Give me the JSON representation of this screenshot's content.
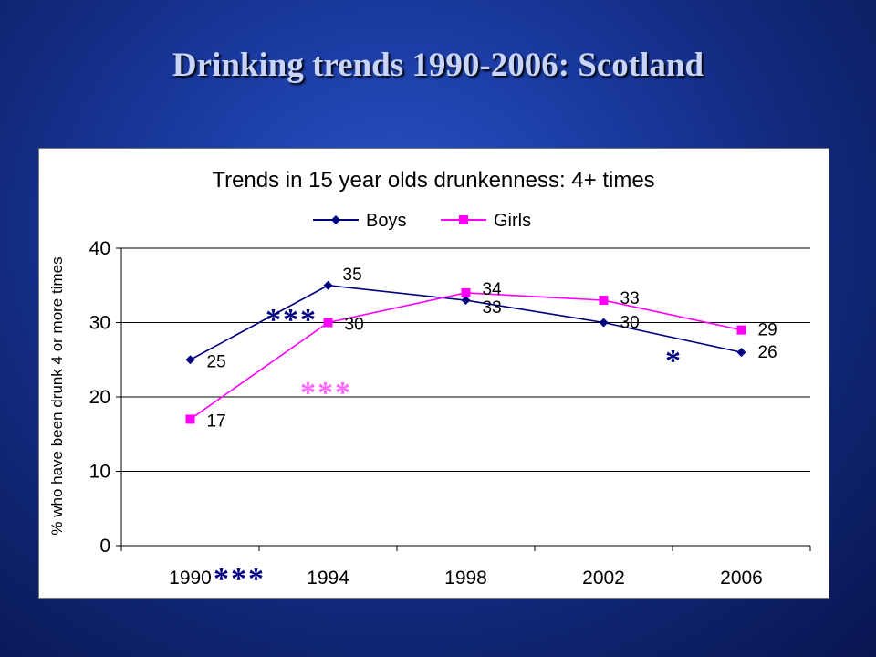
{
  "slide": {
    "title": "Drinking trends 1990-2006: Scotland"
  },
  "chart_data": {
    "type": "line",
    "title": "Trends in 15 year olds drunkenness: 4+ times",
    "xlabel": "",
    "ylabel": "% who have been drunk 4 or more times",
    "categories": [
      "1990",
      "1994",
      "1998",
      "2002",
      "2006"
    ],
    "ylim": [
      0,
      40
    ],
    "yticks": [
      0,
      10,
      20,
      30,
      40
    ],
    "grid": "horizontal",
    "legend": "top-center",
    "series": [
      {
        "name": "Boys",
        "values": [
          25,
          35,
          33,
          30,
          26
        ],
        "color": "#000080",
        "marker": "diamond"
      },
      {
        "name": "Girls",
        "values": [
          17,
          30,
          34,
          33,
          29
        ],
        "color": "#ff00ff",
        "marker": "square"
      }
    ],
    "data_labels": {
      "Boys": [
        "25",
        "35",
        "33",
        "30",
        "26"
      ],
      "Girls": [
        "17",
        "30",
        "34",
        "33",
        "29"
      ]
    },
    "annotations": [
      {
        "text": "***",
        "color": "#000080",
        "near": "boys-1990-1994"
      },
      {
        "text": "***",
        "color": "#ff66ff",
        "near": "girls-1990-1994"
      },
      {
        "text": "*",
        "color": "#000080",
        "near": "boys-2002-2006"
      },
      {
        "text": "***",
        "color": "#000080",
        "near": "x-axis-1990"
      }
    ]
  }
}
